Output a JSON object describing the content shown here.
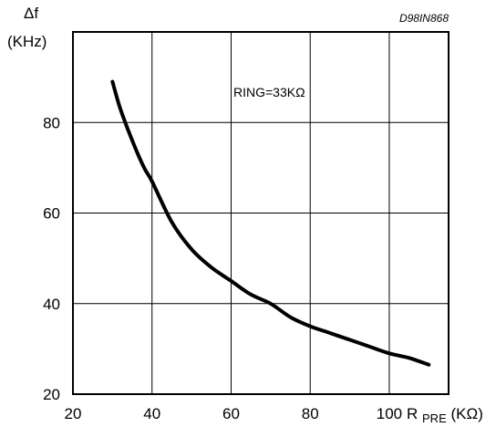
{
  "chart_data": {
    "type": "line",
    "code": "D98IN868",
    "ylabel_symbol": "Δf",
    "ylabel_unit": "(KHz)",
    "xlabel_main": "R",
    "xlabel_sub": "PRE",
    "xlabel_unit": "(KΩ)",
    "annotation": "RING=33KΩ",
    "xlim": [
      20,
      115
    ],
    "ylim": [
      20,
      100
    ],
    "x_ticks": [
      "20",
      "40",
      "60",
      "80",
      "100"
    ],
    "y_ticks": [
      "20",
      "40",
      "60",
      "80"
    ],
    "grid": true,
    "series": [
      {
        "color": "#000000",
        "x": [
          30,
          32,
          35,
          38,
          40,
          45,
          50,
          55,
          60,
          65,
          70,
          75,
          80,
          85,
          90,
          95,
          100,
          105,
          110
        ],
        "y": [
          89,
          83,
          76,
          70,
          67,
          58,
          52,
          48,
          45,
          42,
          40,
          37,
          35,
          33.5,
          32,
          30.5,
          29,
          28,
          26.5
        ]
      }
    ]
  }
}
